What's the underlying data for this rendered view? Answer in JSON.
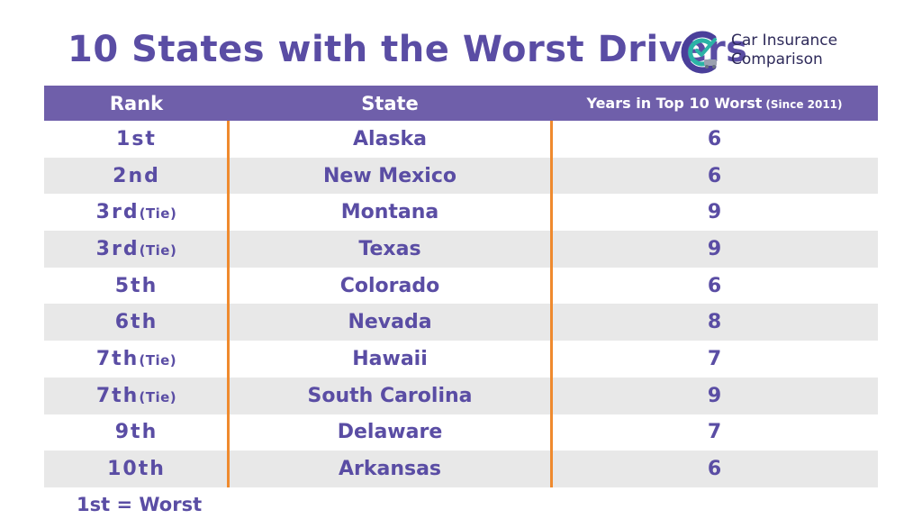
{
  "title": "10 States with the Worst Drivers",
  "logo": {
    "line1": "Car Insurance",
    "line2": "Comparison"
  },
  "colors": {
    "accent": "#5a4da4",
    "header_bg": "#6f5faa",
    "divider": "#ef8a2e",
    "alt_row": "#e8e8e8"
  },
  "chart_data": {
    "type": "table",
    "title": "10 States with the Worst Drivers",
    "columns": {
      "rank": "Rank",
      "state": "State",
      "years": "Years in Top 10 Worst",
      "years_note": "(Since 2011)"
    },
    "rows": [
      {
        "rank": "1st",
        "tie": "",
        "state": "Alaska",
        "years": 6
      },
      {
        "rank": "2nd",
        "tie": "",
        "state": "New Mexico",
        "years": 6
      },
      {
        "rank": "3rd",
        "tie": "(Tie)",
        "state": "Montana",
        "years": 9
      },
      {
        "rank": "3rd",
        "tie": "(Tie)",
        "state": "Texas",
        "years": 9
      },
      {
        "rank": "5th",
        "tie": "",
        "state": "Colorado",
        "years": 6
      },
      {
        "rank": "6th",
        "tie": "",
        "state": "Nevada",
        "years": 8
      },
      {
        "rank": "7th",
        "tie": "(Tie)",
        "state": "Hawaii",
        "years": 7
      },
      {
        "rank": "7th",
        "tie": "(Tie)",
        "state": "South Carolina",
        "years": 9
      },
      {
        "rank": "9th",
        "tie": "",
        "state": "Delaware",
        "years": 7
      },
      {
        "rank": "10th",
        "tie": "",
        "state": "Arkansas",
        "years": 6
      }
    ],
    "footnote": "1st = Worst"
  }
}
